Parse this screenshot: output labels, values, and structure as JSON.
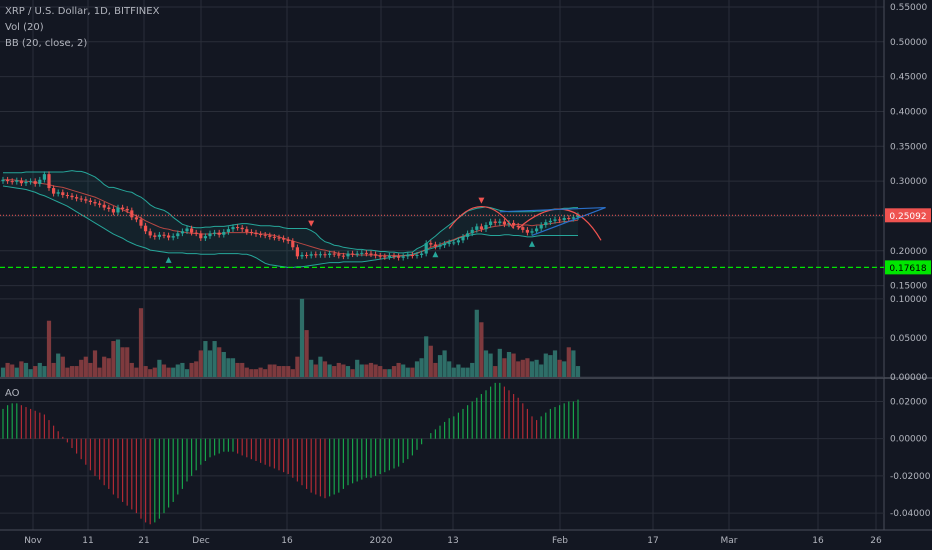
{
  "legend": {
    "symbol": "XRP / U.S. Dollar, 1D, BITFINEX",
    "volume": "Vol (20)",
    "bb": "BB (20, close, 2)",
    "ao": "AO"
  },
  "colors": {
    "background": "#131722",
    "grid": "#2a2e39",
    "up": "#26a69a",
    "down": "#ef5350",
    "up_volume": "#2e6e68",
    "down_volume": "#7e3a3e",
    "bb_band": "#26a69a",
    "bb_basis": "#e0514a",
    "price_line": "#ef5350",
    "support_line": "#00e600",
    "ao_up": "#17a34a",
    "ao_down": "#b02a35",
    "arc": "#ef5350",
    "wedge": "#2a6fc9"
  },
  "chart_data": [
    {
      "type": "candlestick",
      "title": "XRP / U.S. Dollar, 1D, BITFINEX",
      "x_tick_labels": [
        "Nov",
        "11",
        "21",
        "Dec",
        "16",
        "2020",
        "13",
        "Feb",
        "17",
        "Mar",
        "16",
        "26"
      ],
      "y_ticks": [
        "0.55000",
        "0.50000",
        "0.45000",
        "0.40000",
        "0.35000",
        "0.30000",
        "0.25000",
        "0.20000",
        "0.15000"
      ],
      "ylim": [
        0.148,
        0.56
      ],
      "current_price_label": "0.25092",
      "current_price": 0.25092,
      "support_label": "0.17618",
      "support_level": 0.17618,
      "closes": [
        0.302,
        0.3,
        0.299,
        0.301,
        0.297,
        0.299,
        0.3,
        0.296,
        0.302,
        0.31,
        0.29,
        0.282,
        0.284,
        0.28,
        0.279,
        0.277,
        0.275,
        0.274,
        0.272,
        0.27,
        0.268,
        0.266,
        0.262,
        0.26,
        0.255,
        0.262,
        0.26,
        0.258,
        0.248,
        0.245,
        0.236,
        0.228,
        0.222,
        0.22,
        0.223,
        0.222,
        0.219,
        0.221,
        0.225,
        0.228,
        0.232,
        0.226,
        0.225,
        0.218,
        0.221,
        0.225,
        0.226,
        0.223,
        0.227,
        0.231,
        0.234,
        0.233,
        0.231,
        0.227,
        0.226,
        0.224,
        0.223,
        0.222,
        0.22,
        0.219,
        0.218,
        0.216,
        0.214,
        0.205,
        0.192,
        0.194,
        0.193,
        0.195,
        0.194,
        0.195,
        0.194,
        0.196,
        0.195,
        0.193,
        0.192,
        0.196,
        0.195,
        0.196,
        0.197,
        0.196,
        0.195,
        0.193,
        0.192,
        0.191,
        0.193,
        0.192,
        0.19,
        0.192,
        0.194,
        0.193,
        0.194,
        0.196,
        0.211,
        0.209,
        0.206,
        0.208,
        0.21,
        0.212,
        0.212,
        0.215,
        0.22,
        0.225,
        0.23,
        0.235,
        0.231,
        0.237,
        0.242,
        0.24,
        0.242,
        0.238,
        0.24,
        0.236,
        0.234,
        0.23,
        0.226,
        0.228,
        0.232,
        0.237,
        0.241,
        0.243,
        0.245,
        0.244,
        0.247,
        0.246,
        0.248,
        0.251
      ],
      "bb_upper": [
        0.312,
        0.312,
        0.312,
        0.312,
        0.312,
        0.313,
        0.313,
        0.313,
        0.313,
        0.313,
        0.313,
        0.313,
        0.313,
        0.313,
        0.314,
        0.315,
        0.314,
        0.314,
        0.312,
        0.309,
        0.306,
        0.301,
        0.295,
        0.291,
        0.291,
        0.289,
        0.287,
        0.285,
        0.284,
        0.28,
        0.277,
        0.272,
        0.266,
        0.262,
        0.26,
        0.258,
        0.254,
        0.248,
        0.243,
        0.238,
        0.236,
        0.234,
        0.233,
        0.233,
        0.234,
        0.234,
        0.235,
        0.235,
        0.235,
        0.236,
        0.237,
        0.238,
        0.239,
        0.239,
        0.238,
        0.237,
        0.236,
        0.236,
        0.236,
        0.235,
        0.235,
        0.233,
        0.232,
        0.232,
        0.232,
        0.232,
        0.232,
        0.229,
        0.225,
        0.218,
        0.213,
        0.211,
        0.208,
        0.207,
        0.205,
        0.204,
        0.203,
        0.202,
        0.202,
        0.201,
        0.201,
        0.2,
        0.199,
        0.199,
        0.198,
        0.198,
        0.197,
        0.197,
        0.198,
        0.198,
        0.203,
        0.206,
        0.21,
        0.216,
        0.221,
        0.227,
        0.232,
        0.237,
        0.242,
        0.247,
        0.252,
        0.257,
        0.259,
        0.261,
        0.262,
        0.263,
        0.262,
        0.26,
        0.258,
        0.257,
        0.256,
        0.256,
        0.256,
        0.256,
        0.256,
        0.256,
        0.257,
        0.257,
        0.258,
        0.259,
        0.26,
        0.26,
        0.261,
        0.261,
        0.262,
        0.262
      ],
      "bb_basis": [
        0.302,
        0.302,
        0.302,
        0.301,
        0.3,
        0.3,
        0.299,
        0.298,
        0.297,
        0.296,
        0.295,
        0.293,
        0.292,
        0.291,
        0.289,
        0.287,
        0.285,
        0.283,
        0.281,
        0.279,
        0.277,
        0.274,
        0.271,
        0.268,
        0.265,
        0.262,
        0.259,
        0.256,
        0.253,
        0.25,
        0.247,
        0.243,
        0.24,
        0.237,
        0.234,
        0.232,
        0.231,
        0.229,
        0.228,
        0.227,
        0.226,
        0.225,
        0.225,
        0.224,
        0.224,
        0.224,
        0.225,
        0.225,
        0.225,
        0.226,
        0.226,
        0.226,
        0.226,
        0.226,
        0.226,
        0.225,
        0.224,
        0.224,
        0.223,
        0.222,
        0.22,
        0.218,
        0.216,
        0.214,
        0.212,
        0.21,
        0.208,
        0.206,
        0.204,
        0.202,
        0.201,
        0.199,
        0.198,
        0.196,
        0.196,
        0.195,
        0.195,
        0.194,
        0.194,
        0.194,
        0.194,
        0.194,
        0.193,
        0.193,
        0.193,
        0.193,
        0.193,
        0.193,
        0.193,
        0.193,
        0.196,
        0.199,
        0.202,
        0.205,
        0.207,
        0.209,
        0.212,
        0.214,
        0.216,
        0.219,
        0.221,
        0.224,
        0.226,
        0.228,
        0.23,
        0.232,
        0.234,
        0.235,
        0.236,
        0.237,
        0.237,
        0.237,
        0.238,
        0.237,
        0.237,
        0.236,
        0.237,
        0.237,
        0.238,
        0.239,
        0.24,
        0.241,
        0.242,
        0.242,
        0.243,
        0.244
      ],
      "bb_lower": [
        0.293,
        0.292,
        0.291,
        0.29,
        0.289,
        0.288,
        0.286,
        0.284,
        0.281,
        0.279,
        0.276,
        0.273,
        0.27,
        0.267,
        0.264,
        0.26,
        0.256,
        0.252,
        0.248,
        0.244,
        0.24,
        0.236,
        0.232,
        0.228,
        0.224,
        0.221,
        0.218,
        0.214,
        0.211,
        0.208,
        0.206,
        0.204,
        0.201,
        0.2,
        0.199,
        0.198,
        0.197,
        0.197,
        0.197,
        0.197,
        0.196,
        0.196,
        0.196,
        0.195,
        0.195,
        0.195,
        0.195,
        0.196,
        0.196,
        0.196,
        0.196,
        0.196,
        0.195,
        0.195,
        0.193,
        0.19,
        0.186,
        0.182,
        0.18,
        0.179,
        0.178,
        0.177,
        0.176,
        0.176,
        0.177,
        0.177,
        0.178,
        0.179,
        0.18,
        0.181,
        0.182,
        0.183,
        0.183,
        0.183,
        0.184,
        0.184,
        0.184,
        0.184,
        0.184,
        0.185,
        0.186,
        0.187,
        0.188,
        0.189,
        0.19,
        0.191,
        0.192,
        0.193,
        0.194,
        0.195,
        0.197,
        0.199,
        0.201,
        0.203,
        0.205,
        0.207,
        0.21,
        0.213,
        0.215,
        0.218,
        0.22,
        0.222,
        0.223,
        0.224,
        0.224,
        0.223,
        0.222,
        0.222,
        0.222,
        0.223,
        0.223,
        0.222,
        0.222,
        0.221,
        0.22,
        0.22,
        0.221,
        0.222,
        0.222,
        0.222,
        0.222,
        0.222,
        0.222,
        0.222,
        0.222,
        0.222
      ]
    },
    {
      "type": "bar",
      "name": "Vol (20)",
      "y_ticks": [
        "0.10000",
        "0.05000",
        "0.00000"
      ],
      "ylim": [
        0,
        0.11
      ],
      "values": [
        0.012,
        0.018,
        0.016,
        0.012,
        0.02,
        0.018,
        0.01,
        0.014,
        0.018,
        0.014,
        0.072,
        0.018,
        0.03,
        0.026,
        0.012,
        0.014,
        0.014,
        0.022,
        0.026,
        0.018,
        0.034,
        0.012,
        0.026,
        0.024,
        0.046,
        0.048,
        0.038,
        0.038,
        0.018,
        0.012,
        0.088,
        0.014,
        0.01,
        0.012,
        0.022,
        0.016,
        0.012,
        0.012,
        0.016,
        0.018,
        0.01,
        0.018,
        0.02,
        0.034,
        0.046,
        0.034,
        0.046,
        0.038,
        0.032,
        0.024,
        0.024,
        0.018,
        0.018,
        0.012,
        0.01,
        0.01,
        0.012,
        0.01,
        0.016,
        0.016,
        0.014,
        0.014,
        0.014,
        0.01,
        0.026,
        0.1,
        0.06,
        0.022,
        0.016,
        0.026,
        0.02,
        0.016,
        0.014,
        0.018,
        0.016,
        0.014,
        0.01,
        0.022,
        0.016,
        0.016,
        0.018,
        0.016,
        0.014,
        0.01,
        0.01,
        0.014,
        0.018,
        0.016,
        0.012,
        0.012,
        0.02,
        0.024,
        0.052,
        0.04,
        0.018,
        0.028,
        0.034,
        0.02,
        0.012,
        0.016,
        0.012,
        0.012,
        0.018,
        0.086,
        0.07,
        0.034,
        0.03,
        0.014,
        0.036,
        0.024,
        0.032,
        0.03,
        0.02,
        0.022,
        0.024,
        0.02,
        0.022,
        0.016,
        0.03,
        0.028,
        0.034,
        0.022,
        0.02,
        0.038,
        0.034,
        0.014
      ],
      "directions": [
        1,
        -1,
        -1,
        1,
        -1,
        1,
        1,
        -1,
        1,
        1,
        -1,
        -1,
        1,
        -1,
        -1,
        -1,
        -1,
        -1,
        -1,
        -1,
        -1,
        -1,
        -1,
        -1,
        -1,
        1,
        -1,
        -1,
        -1,
        -1,
        -1,
        -1,
        -1,
        -1,
        1,
        -1,
        -1,
        1,
        1,
        1,
        1,
        -1,
        -1,
        -1,
        1,
        1,
        1,
        -1,
        1,
        1,
        1,
        -1,
        -1,
        -1,
        -1,
        -1,
        -1,
        -1,
        -1,
        -1,
        -1,
        -1,
        -1,
        -1,
        -1,
        1,
        -1,
        1,
        -1,
        1,
        -1,
        1,
        -1,
        -1,
        -1,
        1,
        -1,
        1,
        1,
        -1,
        -1,
        -1,
        -1,
        -1,
        1,
        -1,
        -1,
        1,
        1,
        -1,
        1,
        1,
        1,
        -1,
        -1,
        1,
        1,
        1,
        1,
        1,
        1,
        1,
        1,
        1,
        -1,
        1,
        1,
        -1,
        1,
        -1,
        1,
        -1,
        -1,
        -1,
        -1,
        1,
        1,
        1,
        1,
        1,
        1,
        -1,
        1,
        -1,
        1,
        1
      ]
    },
    {
      "type": "bar",
      "name": "AO",
      "y_ticks": [
        "0.02000",
        "0.00000",
        "-0.02000",
        "-0.04000"
      ],
      "ylim": [
        -0.048,
        0.031
      ],
      "values": [
        0.016,
        0.018,
        0.019,
        0.019,
        0.018,
        0.017,
        0.016,
        0.015,
        0.014,
        0.013,
        0.01,
        0.007,
        0.004,
        0.001,
        -0.002,
        -0.005,
        -0.008,
        -0.011,
        -0.014,
        -0.017,
        -0.02,
        -0.022,
        -0.025,
        -0.027,
        -0.03,
        -0.032,
        -0.034,
        -0.036,
        -0.038,
        -0.04,
        -0.043,
        -0.045,
        -0.046,
        -0.045,
        -0.043,
        -0.04,
        -0.037,
        -0.034,
        -0.03,
        -0.027,
        -0.023,
        -0.02,
        -0.017,
        -0.014,
        -0.012,
        -0.01,
        -0.009,
        -0.008,
        -0.007,
        -0.007,
        -0.007,
        -0.008,
        -0.009,
        -0.01,
        -0.011,
        -0.012,
        -0.013,
        -0.014,
        -0.015,
        -0.016,
        -0.017,
        -0.018,
        -0.019,
        -0.021,
        -0.023,
        -0.025,
        -0.027,
        -0.029,
        -0.03,
        -0.031,
        -0.032,
        -0.031,
        -0.03,
        -0.029,
        -0.027,
        -0.025,
        -0.024,
        -0.023,
        -0.022,
        -0.021,
        -0.021,
        -0.02,
        -0.019,
        -0.018,
        -0.017,
        -0.016,
        -0.015,
        -0.013,
        -0.011,
        -0.009,
        -0.006,
        -0.003,
        0.0,
        0.003,
        0.005,
        0.007,
        0.009,
        0.011,
        0.012,
        0.014,
        0.016,
        0.018,
        0.02,
        0.022,
        0.024,
        0.026,
        0.028,
        0.03,
        0.03,
        0.028,
        0.026,
        0.024,
        0.022,
        0.019,
        0.016,
        0.012,
        0.01,
        0.012,
        0.014,
        0.016,
        0.017,
        0.018,
        0.019,
        0.02,
        0.02,
        0.021
      ]
    }
  ]
}
